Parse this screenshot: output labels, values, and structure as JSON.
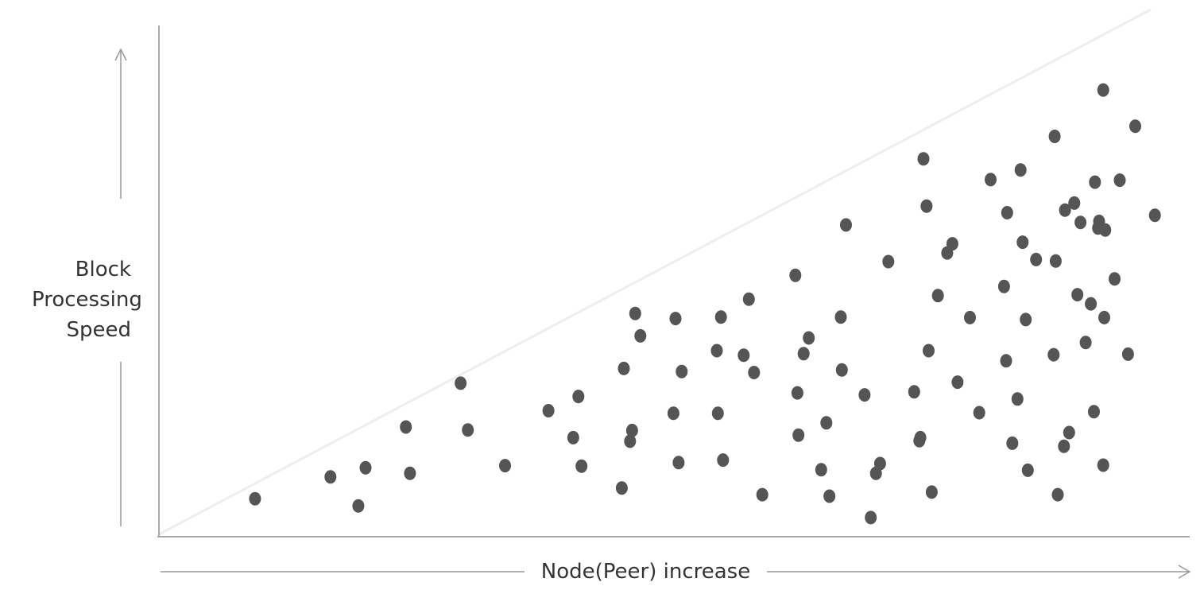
{
  "chart_data": {
    "type": "scatter",
    "title": "",
    "xlabel": "Node(Peer) increase",
    "ylabel_lines": [
      "Block",
      "Processing",
      "Speed"
    ],
    "xlim": [
      0,
      100
    ],
    "ylim": [
      0,
      100
    ],
    "grid": false,
    "legend": "none",
    "reference_line": {
      "from": [
        0,
        0
      ],
      "to": [
        96,
        100
      ]
    },
    "colors": {
      "points": "#555555",
      "axis": "#aaaaaa",
      "reference_line": "#eeeeee",
      "arrow": "#999999",
      "text": "#333333"
    },
    "series": [
      {
        "points": [
          [
            9.3,
            7.0
          ],
          [
            16.6,
            11.3
          ],
          [
            19.3,
            5.6
          ],
          [
            20.0,
            13.1
          ],
          [
            23.9,
            21.1
          ],
          [
            24.3,
            12.0
          ],
          [
            29.2,
            29.7
          ],
          [
            29.9,
            20.5
          ],
          [
            33.5,
            13.5
          ],
          [
            37.7,
            24.3
          ],
          [
            40.1,
            19.0
          ],
          [
            40.6,
            27.1
          ],
          [
            40.9,
            13.4
          ],
          [
            44.8,
            9.1
          ],
          [
            45.0,
            32.6
          ],
          [
            45.6,
            18.3
          ],
          [
            45.8,
            20.4
          ],
          [
            46.1,
            43.4
          ],
          [
            46.6,
            39.0
          ],
          [
            49.8,
            23.8
          ],
          [
            50.0,
            42.4
          ],
          [
            50.3,
            14.1
          ],
          [
            50.6,
            32.0
          ],
          [
            54.0,
            36.1
          ],
          [
            54.1,
            23.8
          ],
          [
            54.4,
            42.7
          ],
          [
            54.6,
            14.6
          ],
          [
            56.6,
            35.2
          ],
          [
            57.1,
            46.2
          ],
          [
            57.6,
            31.8
          ],
          [
            58.4,
            7.8
          ],
          [
            61.6,
            50.9
          ],
          [
            61.8,
            27.8
          ],
          [
            61.9,
            19.5
          ],
          [
            62.4,
            35.5
          ],
          [
            62.9,
            38.6
          ],
          [
            64.1,
            12.7
          ],
          [
            64.6,
            21.9
          ],
          [
            64.9,
            7.5
          ],
          [
            66.0,
            42.7
          ],
          [
            66.1,
            32.3
          ],
          [
            66.5,
            60.8
          ],
          [
            68.3,
            27.4
          ],
          [
            68.9,
            3.3
          ],
          [
            69.4,
            12.0
          ],
          [
            69.8,
            13.9
          ],
          [
            70.6,
            53.6
          ],
          [
            73.1,
            28.0
          ],
          [
            73.6,
            18.4
          ],
          [
            73.7,
            19.0
          ],
          [
            74.0,
            73.8
          ],
          [
            74.3,
            64.5
          ],
          [
            74.5,
            36.1
          ],
          [
            74.8,
            8.3
          ],
          [
            75.4,
            46.9
          ],
          [
            76.3,
            55.3
          ],
          [
            76.8,
            57.1
          ],
          [
            77.3,
            29.9
          ],
          [
            78.5,
            42.6
          ],
          [
            79.4,
            23.9
          ],
          [
            80.5,
            69.7
          ],
          [
            81.8,
            48.7
          ],
          [
            82.0,
            34.1
          ],
          [
            82.1,
            63.2
          ],
          [
            82.6,
            17.9
          ],
          [
            83.1,
            26.6
          ],
          [
            83.4,
            71.6
          ],
          [
            83.6,
            57.4
          ],
          [
            83.9,
            42.2
          ],
          [
            84.1,
            12.6
          ],
          [
            84.9,
            54.0
          ],
          [
            86.6,
            35.3
          ],
          [
            86.7,
            78.2
          ],
          [
            86.8,
            53.7
          ],
          [
            87.0,
            7.8
          ],
          [
            87.6,
            17.3
          ],
          [
            87.7,
            63.7
          ],
          [
            88.1,
            20.0
          ],
          [
            88.6,
            65.1
          ],
          [
            88.9,
            47.1
          ],
          [
            89.2,
            61.3
          ],
          [
            89.7,
            37.7
          ],
          [
            90.2,
            45.3
          ],
          [
            90.5,
            24.1
          ],
          [
            90.6,
            69.2
          ],
          [
            90.9,
            60.2
          ],
          [
            91.0,
            61.5
          ],
          [
            91.4,
            13.6
          ],
          [
            91.4,
            87.3
          ],
          [
            91.5,
            42.6
          ],
          [
            91.6,
            59.8
          ],
          [
            92.5,
            50.2
          ],
          [
            93.0,
            69.6
          ],
          [
            93.8,
            35.4
          ],
          [
            94.5,
            80.2
          ],
          [
            96.4,
            62.7
          ]
        ]
      }
    ]
  }
}
